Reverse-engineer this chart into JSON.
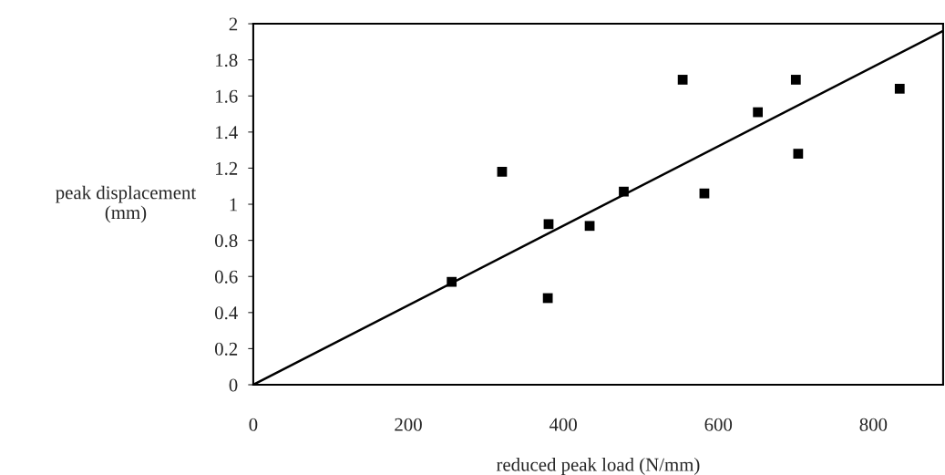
{
  "chart_data": {
    "type": "scatter",
    "xlabel": "reduced peak load (N/mm)",
    "ylabel": "peak displacement\n(mm)",
    "xlim": [
      0,
      890
    ],
    "ylim": [
      0,
      2
    ],
    "xticks": [
      0,
      200,
      400,
      600,
      800
    ],
    "yticks": [
      0,
      0.2,
      0.4,
      0.6,
      0.8,
      1,
      1.2,
      1.4,
      1.6,
      1.8,
      2
    ],
    "grid": false,
    "legend": false,
    "series": [
      {
        "marker": "square",
        "color": "#000000",
        "x": [
          256,
          321,
          381,
          380,
          434,
          478,
          554,
          582,
          651,
          700,
          703,
          834
        ],
        "values": [
          0.57,
          1.18,
          0.89,
          0.48,
          0.88,
          1.07,
          1.69,
          1.06,
          1.51,
          1.69,
          1.28,
          1.64
        ]
      },
      {
        "type": "line",
        "marker": "none",
        "line_style": "solid",
        "color": "#000000",
        "x": [
          0,
          890
        ],
        "values": [
          0,
          1.96
        ]
      }
    ]
  }
}
